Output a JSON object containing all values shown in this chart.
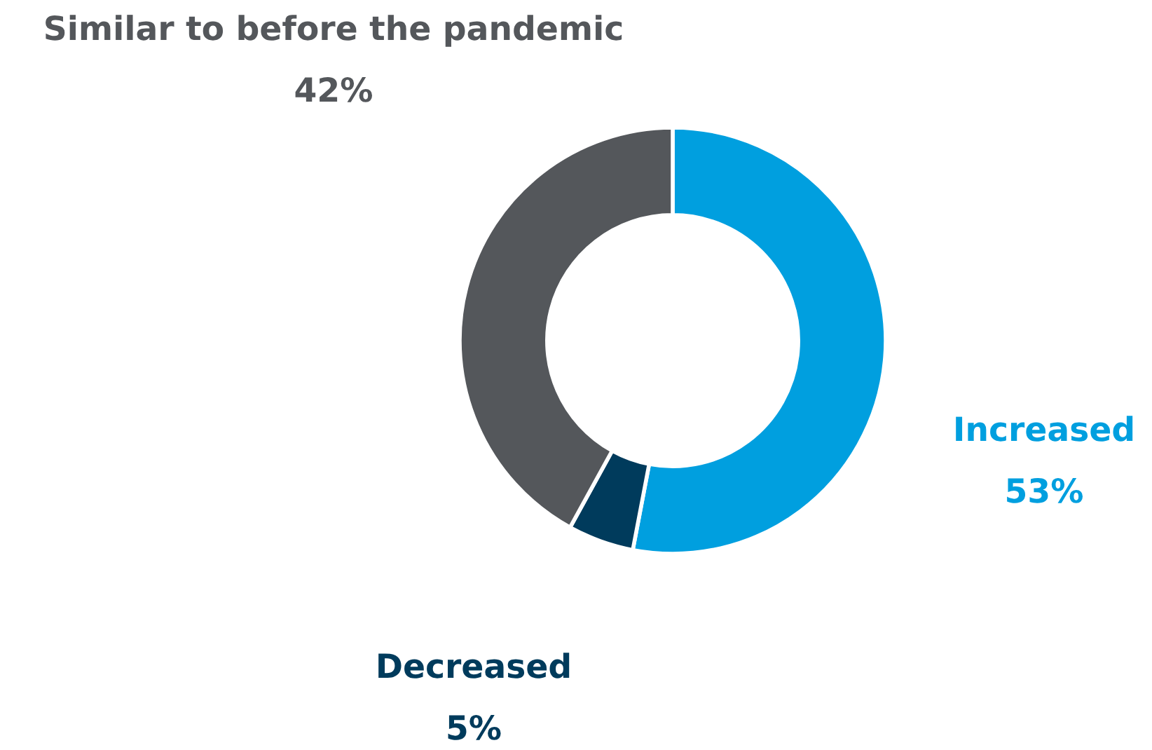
{
  "chart_data": {
    "type": "donut",
    "categories": [
      "Increased",
      "Decreased",
      "Similar to before the pandemic"
    ],
    "values": [
      53,
      5,
      42
    ],
    "colors": [
      "#009fdf",
      "#003b5c",
      "#54575b"
    ],
    "value_labels": [
      "53%",
      "5%",
      "42%"
    ],
    "legend": false
  }
}
